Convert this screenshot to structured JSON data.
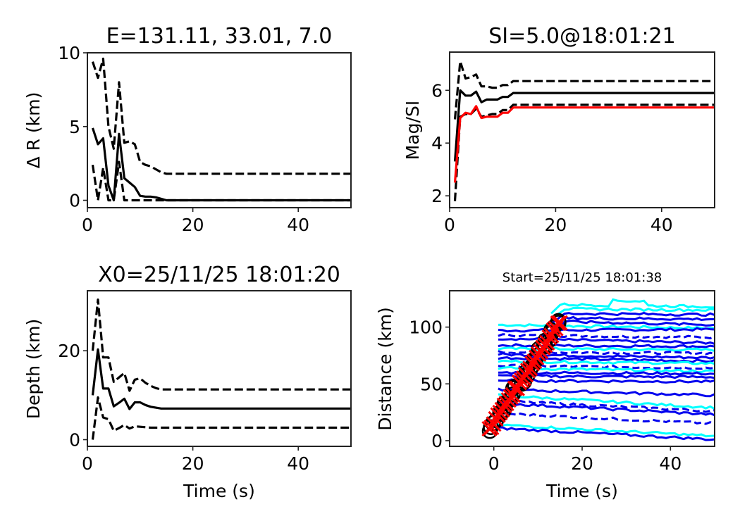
{
  "colors": {
    "black": "#000000",
    "red": "#ff0000",
    "blue": "#0000ee",
    "cyan": "#00ffff"
  },
  "chart_data": [
    {
      "id": "tl",
      "type": "line",
      "title": "E=131.11, 33.01,  7.0",
      "xlabel": "",
      "ylabel": "Δ R (km)",
      "xlim": [
        0,
        50
      ],
      "ylim": [
        -0.5,
        10
      ],
      "xticks": [
        0,
        20,
        40
      ],
      "yticks": [
        0,
        5,
        10
      ],
      "series": [
        {
          "name": "mean",
          "style": "solid",
          "color": "#000000",
          "x": [
            1,
            2,
            3,
            4,
            5,
            6,
            7,
            8,
            9,
            10,
            11,
            12,
            13,
            14,
            15,
            50
          ],
          "y": [
            4.9,
            3.8,
            4.2,
            1.0,
            0.0,
            4.5,
            1.5,
            1.2,
            0.9,
            0.3,
            0.25,
            0.25,
            0.2,
            0.1,
            0.0,
            0.0
          ]
        },
        {
          "name": "upper",
          "style": "dashed",
          "color": "#000000",
          "x": [
            1,
            2,
            3,
            4,
            5,
            6,
            7,
            8,
            9,
            10,
            11,
            12,
            13,
            14,
            15,
            50
          ],
          "y": [
            9.4,
            8.3,
            9.6,
            5.0,
            3.5,
            8.0,
            3.9,
            4.0,
            3.8,
            2.6,
            2.4,
            2.3,
            2.1,
            1.9,
            1.8,
            1.8
          ]
        },
        {
          "name": "lower",
          "style": "dashed",
          "color": "#000000",
          "x": [
            1,
            2,
            3,
            4,
            5,
            6,
            7,
            50
          ],
          "y": [
            2.4,
            0.0,
            2.2,
            0.0,
            0.0,
            2.6,
            0.0,
            0.0
          ]
        }
      ]
    },
    {
      "id": "tr",
      "type": "line",
      "title": "SI=5.0@18:01:21",
      "xlabel": "",
      "ylabel": "Mag/SI",
      "xlim": [
        0,
        50
      ],
      "ylim": [
        1.55,
        7.45
      ],
      "xticks": [
        0,
        20,
        40
      ],
      "yticks": [
        2,
        4,
        6
      ],
      "series": [
        {
          "name": "mean",
          "style": "solid",
          "color": "#000000",
          "x": [
            1,
            2,
            3,
            4,
            5,
            6,
            7,
            8,
            9,
            10,
            11,
            12,
            50
          ],
          "y": [
            3.3,
            6.0,
            5.8,
            5.8,
            5.95,
            5.55,
            5.65,
            5.65,
            5.65,
            5.75,
            5.75,
            5.9,
            5.9
          ]
        },
        {
          "name": "upper",
          "style": "dashed",
          "color": "#000000",
          "x": [
            1,
            2,
            3,
            4,
            5,
            6,
            7,
            8,
            9,
            10,
            11,
            12,
            50
          ],
          "y": [
            4.9,
            7.1,
            6.45,
            6.5,
            6.6,
            6.15,
            6.15,
            6.1,
            6.1,
            6.2,
            6.2,
            6.35,
            6.35
          ]
        },
        {
          "name": "lower",
          "style": "dashed",
          "color": "#000000",
          "x": [
            1,
            2,
            3,
            4,
            5,
            6,
            7,
            8,
            9,
            10,
            11,
            12,
            50
          ],
          "y": [
            1.8,
            5.0,
            5.1,
            5.1,
            5.3,
            5.0,
            5.05,
            5.1,
            5.1,
            5.25,
            5.25,
            5.45,
            5.45
          ]
        },
        {
          "name": "SI",
          "style": "solid",
          "color": "#ff0000",
          "x": [
            1,
            2,
            3,
            4,
            5,
            6,
            7,
            8,
            9,
            10,
            11,
            12,
            50
          ],
          "y": [
            2.5,
            4.95,
            5.15,
            5.1,
            5.4,
            4.95,
            5.0,
            5.0,
            5.0,
            5.15,
            5.15,
            5.35,
            5.35
          ]
        }
      ]
    },
    {
      "id": "bl",
      "type": "line",
      "title": "X0=25/11/25 18:01:20",
      "xlabel": "Time (s)",
      "ylabel": "Depth (km)",
      "xlim": [
        0,
        50
      ],
      "ylim": [
        -1.5,
        33.5
      ],
      "xticks": [
        0,
        20,
        40
      ],
      "yticks": [
        0,
        20
      ],
      "series": [
        {
          "name": "mean",
          "style": "solid",
          "color": "#000000",
          "x": [
            1,
            2,
            3,
            4,
            5,
            6,
            7,
            8,
            9,
            10,
            11,
            12,
            13,
            14,
            50
          ],
          "y": [
            10,
            20.3,
            11.5,
            11.5,
            7.5,
            8.3,
            9.2,
            6.9,
            8.4,
            8.4,
            7.8,
            7.4,
            7.2,
            7.0,
            7.0
          ]
        },
        {
          "name": "upper",
          "style": "dashed",
          "color": "#000000",
          "x": [
            1,
            2,
            3,
            4,
            5,
            6,
            7,
            8,
            9,
            10,
            11,
            12,
            13,
            14,
            50
          ],
          "y": [
            20,
            31.5,
            18.5,
            18.5,
            13.0,
            14.0,
            15.0,
            11.0,
            13.5,
            13.8,
            12.8,
            12.1,
            11.6,
            11.3,
            11.3
          ]
        },
        {
          "name": "lower",
          "style": "dashed",
          "color": "#000000",
          "x": [
            1,
            2,
            3,
            4,
            5,
            6,
            7,
            8,
            9,
            10,
            11,
            12,
            13,
            14,
            50
          ],
          "y": [
            0,
            9.5,
            5.0,
            4.6,
            2.0,
            2.6,
            3.3,
            2.5,
            3.0,
            2.9,
            2.8,
            2.7,
            2.7,
            2.7,
            2.7
          ]
        }
      ]
    },
    {
      "id": "br",
      "type": "line",
      "title": "Start=25/11/25 18:01:38",
      "xlabel": "Time (s)",
      "ylabel": "Distance (km)",
      "xlim": [
        -10,
        50
      ],
      "ylim": [
        -5,
        132
      ],
      "xticks": [
        0,
        20,
        40
      ],
      "yticks": [
        0,
        50,
        100
      ],
      "trace_levels": [
        {
          "d": 102,
          "end": 99,
          "color": "#00ffff",
          "style": "solid"
        },
        {
          "d": 97,
          "end": 98,
          "color": "#0000ee",
          "style": "solid"
        },
        {
          "d": 93,
          "end": 91,
          "color": "#0000ee",
          "style": "dashed"
        },
        {
          "d": 90,
          "end": 86,
          "color": "#0000ee",
          "style": "solid"
        },
        {
          "d": 84,
          "end": 83,
          "color": "#0000ee",
          "style": "solid"
        },
        {
          "d": 81,
          "end": 80,
          "color": "#00ffff",
          "style": "solid"
        },
        {
          "d": 78,
          "end": 77,
          "color": "#0000ee",
          "style": "dashed"
        },
        {
          "d": 76,
          "end": 73,
          "color": "#0000ee",
          "style": "solid"
        },
        {
          "d": 73,
          "end": 70,
          "color": "#0000ee",
          "style": "solid"
        },
        {
          "d": 70,
          "end": 68,
          "color": "#00ffff",
          "style": "solid"
        },
        {
          "d": 66,
          "end": 64,
          "color": "#0000ee",
          "style": "dashed"
        },
        {
          "d": 64,
          "end": 61,
          "color": "#00ffff",
          "style": "solid"
        },
        {
          "d": 60,
          "end": 59,
          "color": "#0000ee",
          "style": "solid"
        },
        {
          "d": 57,
          "end": 56,
          "color": "#0000ee",
          "style": "solid"
        },
        {
          "d": 53,
          "end": 52,
          "color": "#0000ee",
          "style": "solid"
        },
        {
          "d": 45,
          "end": 40,
          "color": "#0000ee",
          "style": "solid"
        },
        {
          "d": 40,
          "end": 29,
          "color": "#00ffff",
          "style": "solid"
        },
        {
          "d": 35,
          "end": 26,
          "color": "#0000ee",
          "style": "dashed"
        },
        {
          "d": 33,
          "end": 23,
          "color": "#0000ee",
          "style": "solid"
        },
        {
          "d": 24,
          "end": 15,
          "color": "#0000ee",
          "style": "dashed"
        },
        {
          "d": 14,
          "end": 4,
          "color": "#00ffff",
          "style": "solid"
        },
        {
          "d": 11,
          "end": 1,
          "color": "#0000ee",
          "style": "solid"
        }
      ],
      "far_levels": [
        {
          "d": 120,
          "end": 118,
          "color": "#00ffff"
        },
        {
          "d": 116,
          "end": 115,
          "color": "#00ffff"
        },
        {
          "d": 112,
          "end": 111,
          "color": "#0000ee"
        },
        {
          "d": 108,
          "end": 107,
          "color": "#0000ee"
        },
        {
          "d": 105,
          "end": 102,
          "color": "#0000ee"
        }
      ],
      "picks_t_start": -1,
      "picks_t_end": 15,
      "picks_d_start": 10,
      "picks_d_end": 105
    }
  ]
}
